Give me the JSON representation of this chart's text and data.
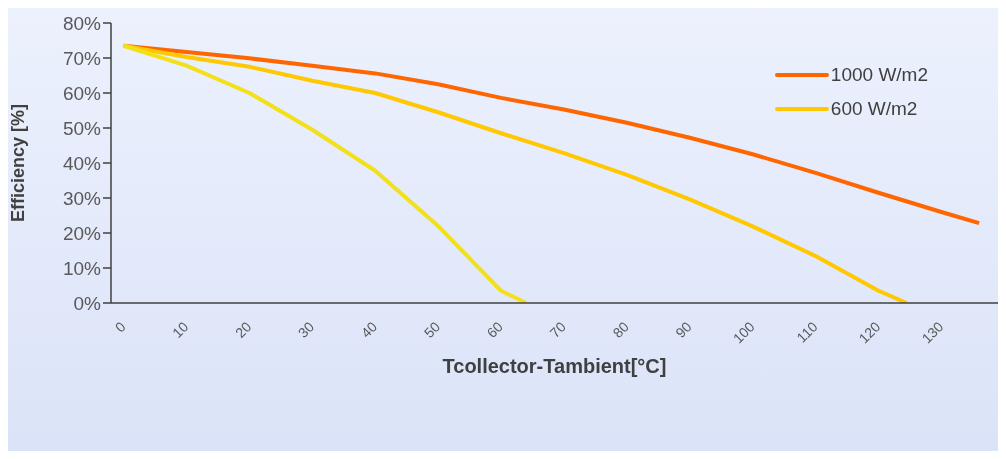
{
  "chart_data": {
    "type": "line",
    "xlabel": "Tcollector-Tambient[°C]",
    "ylabel": "Efficiency [%]",
    "xlim": [
      -2,
      139
    ],
    "xticks": [
      0,
      10,
      20,
      30,
      40,
      50,
      60,
      70,
      80,
      90,
      100,
      110,
      120,
      130
    ],
    "ylim": [
      0,
      80
    ],
    "yticks": [
      {
        "value": 0,
        "label": "0%"
      },
      {
        "value": 10,
        "label": "10%"
      },
      {
        "value": 20,
        "label": "20%"
      },
      {
        "value": 30,
        "label": "30%"
      },
      {
        "value": 40,
        "label": "40%"
      },
      {
        "value": 50,
        "label": "50%"
      },
      {
        "value": 60,
        "label": "60%"
      },
      {
        "value": 70,
        "label": "70%"
      },
      {
        "value": 80,
        "label": "80%"
      }
    ],
    "grid": false,
    "legend": "top right",
    "marker": "none",
    "line_style": "solid",
    "series": [
      {
        "name": "1000 W/m2",
        "color": "#ff6600",
        "x": [
          0,
          10,
          20,
          30,
          40,
          50,
          60,
          70,
          80,
          90,
          100,
          110,
          120,
          130,
          136
        ],
        "values": [
          73.5,
          71.7,
          69.9,
          67.8,
          65.6,
          62.5,
          58.6,
          55.3,
          51.5,
          47.2,
          42.5,
          37.2,
          31.5,
          26,
          22.8
        ]
      },
      {
        "name": "600 W/m2",
        "color": "#ffc800",
        "x": [
          0,
          10,
          20,
          30,
          40,
          50,
          60,
          70,
          80,
          90,
          100,
          110,
          120,
          124.5
        ],
        "values": [
          73.5,
          70.3,
          67.5,
          63.5,
          60,
          54.5,
          48.5,
          42.8,
          36.6,
          29.6,
          21.9,
          13.4,
          3.5,
          0
        ]
      },
      {
        "color": "#f2e01a",
        "x": [
          0,
          10,
          20,
          30,
          40,
          50,
          60,
          64
        ],
        "values": [
          73.5,
          67.8,
          60,
          49.5,
          37.8,
          22,
          3.5,
          0
        ]
      }
    ]
  }
}
